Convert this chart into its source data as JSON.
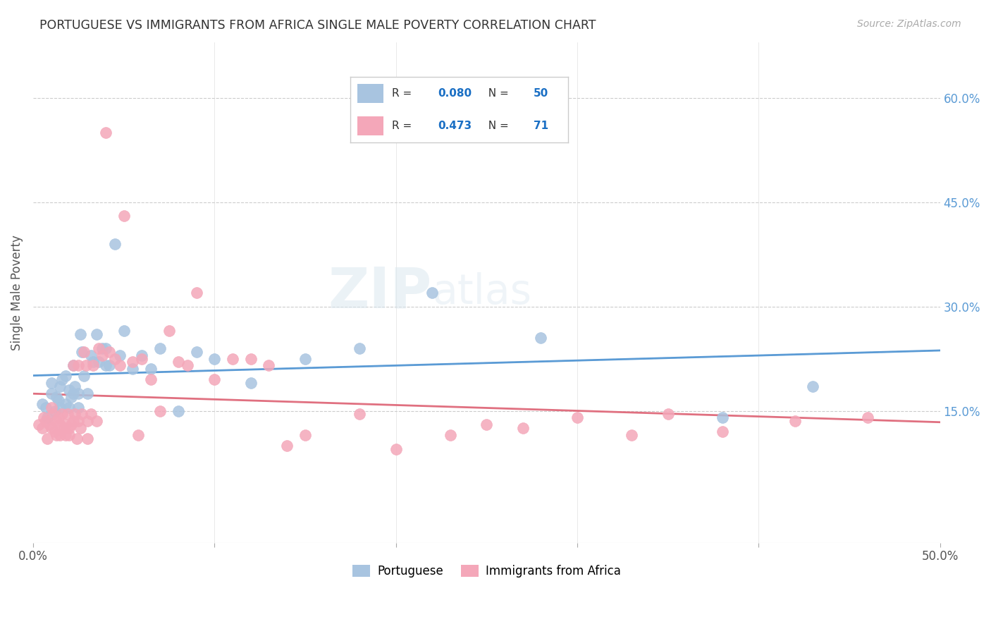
{
  "title": "PORTUGUESE VS IMMIGRANTS FROM AFRICA SINGLE MALE POVERTY CORRELATION CHART",
  "source": "Source: ZipAtlas.com",
  "ylabel": "Single Male Poverty",
  "right_yticks": [
    "15.0%",
    "30.0%",
    "45.0%",
    "60.0%"
  ],
  "right_ytick_vals": [
    0.15,
    0.3,
    0.45,
    0.6
  ],
  "xlim": [
    0.0,
    0.5
  ],
  "ylim": [
    -0.04,
    0.68
  ],
  "color_portuguese": "#a8c4e0",
  "color_africa": "#f4a7b9",
  "color_line_portuguese": "#5b9bd5",
  "color_line_africa": "#e07080",
  "color_line_portuguese_ext": "#c0d8f0",
  "watermark_color": "#d0dce8",
  "portuguese_x": [
    0.005,
    0.007,
    0.008,
    0.01,
    0.01,
    0.012,
    0.013,
    0.014,
    0.015,
    0.015,
    0.016,
    0.018,
    0.018,
    0.02,
    0.02,
    0.021,
    0.022,
    0.022,
    0.023,
    0.025,
    0.025,
    0.026,
    0.027,
    0.028,
    0.03,
    0.032,
    0.033,
    0.035,
    0.036,
    0.038,
    0.04,
    0.04,
    0.042,
    0.045,
    0.048,
    0.05,
    0.055,
    0.06,
    0.065,
    0.07,
    0.08,
    0.09,
    0.1,
    0.12,
    0.15,
    0.18,
    0.22,
    0.28,
    0.38,
    0.43
  ],
  "portuguese_y": [
    0.16,
    0.155,
    0.14,
    0.175,
    0.19,
    0.15,
    0.17,
    0.165,
    0.155,
    0.185,
    0.195,
    0.16,
    0.2,
    0.155,
    0.18,
    0.17,
    0.175,
    0.215,
    0.185,
    0.155,
    0.175,
    0.26,
    0.235,
    0.2,
    0.175,
    0.23,
    0.22,
    0.26,
    0.22,
    0.24,
    0.215,
    0.24,
    0.215,
    0.39,
    0.23,
    0.265,
    0.21,
    0.23,
    0.21,
    0.24,
    0.15,
    0.235,
    0.225,
    0.19,
    0.225,
    0.24,
    0.32,
    0.255,
    0.14,
    0.185
  ],
  "africa_x": [
    0.003,
    0.005,
    0.006,
    0.007,
    0.008,
    0.009,
    0.01,
    0.01,
    0.011,
    0.012,
    0.013,
    0.013,
    0.014,
    0.015,
    0.015,
    0.016,
    0.017,
    0.018,
    0.018,
    0.019,
    0.02,
    0.02,
    0.021,
    0.022,
    0.022,
    0.023,
    0.024,
    0.025,
    0.025,
    0.026,
    0.027,
    0.028,
    0.029,
    0.03,
    0.03,
    0.032,
    0.033,
    0.035,
    0.036,
    0.038,
    0.04,
    0.042,
    0.045,
    0.048,
    0.05,
    0.055,
    0.058,
    0.06,
    0.065,
    0.07,
    0.075,
    0.08,
    0.085,
    0.09,
    0.1,
    0.11,
    0.12,
    0.13,
    0.14,
    0.15,
    0.18,
    0.2,
    0.23,
    0.25,
    0.27,
    0.3,
    0.33,
    0.35,
    0.38,
    0.42,
    0.46
  ],
  "africa_y": [
    0.13,
    0.125,
    0.14,
    0.135,
    0.11,
    0.13,
    0.155,
    0.125,
    0.145,
    0.12,
    0.135,
    0.115,
    0.14,
    0.13,
    0.115,
    0.145,
    0.125,
    0.13,
    0.115,
    0.145,
    0.125,
    0.115,
    0.13,
    0.135,
    0.215,
    0.145,
    0.11,
    0.135,
    0.215,
    0.125,
    0.145,
    0.235,
    0.215,
    0.135,
    0.11,
    0.145,
    0.215,
    0.135,
    0.24,
    0.23,
    0.55,
    0.235,
    0.225,
    0.215,
    0.43,
    0.22,
    0.115,
    0.225,
    0.195,
    0.15,
    0.265,
    0.22,
    0.215,
    0.32,
    0.195,
    0.225,
    0.225,
    0.215,
    0.1,
    0.115,
    0.145,
    0.095,
    0.115,
    0.13,
    0.125,
    0.14,
    0.115,
    0.145,
    0.12,
    0.135,
    0.14
  ]
}
